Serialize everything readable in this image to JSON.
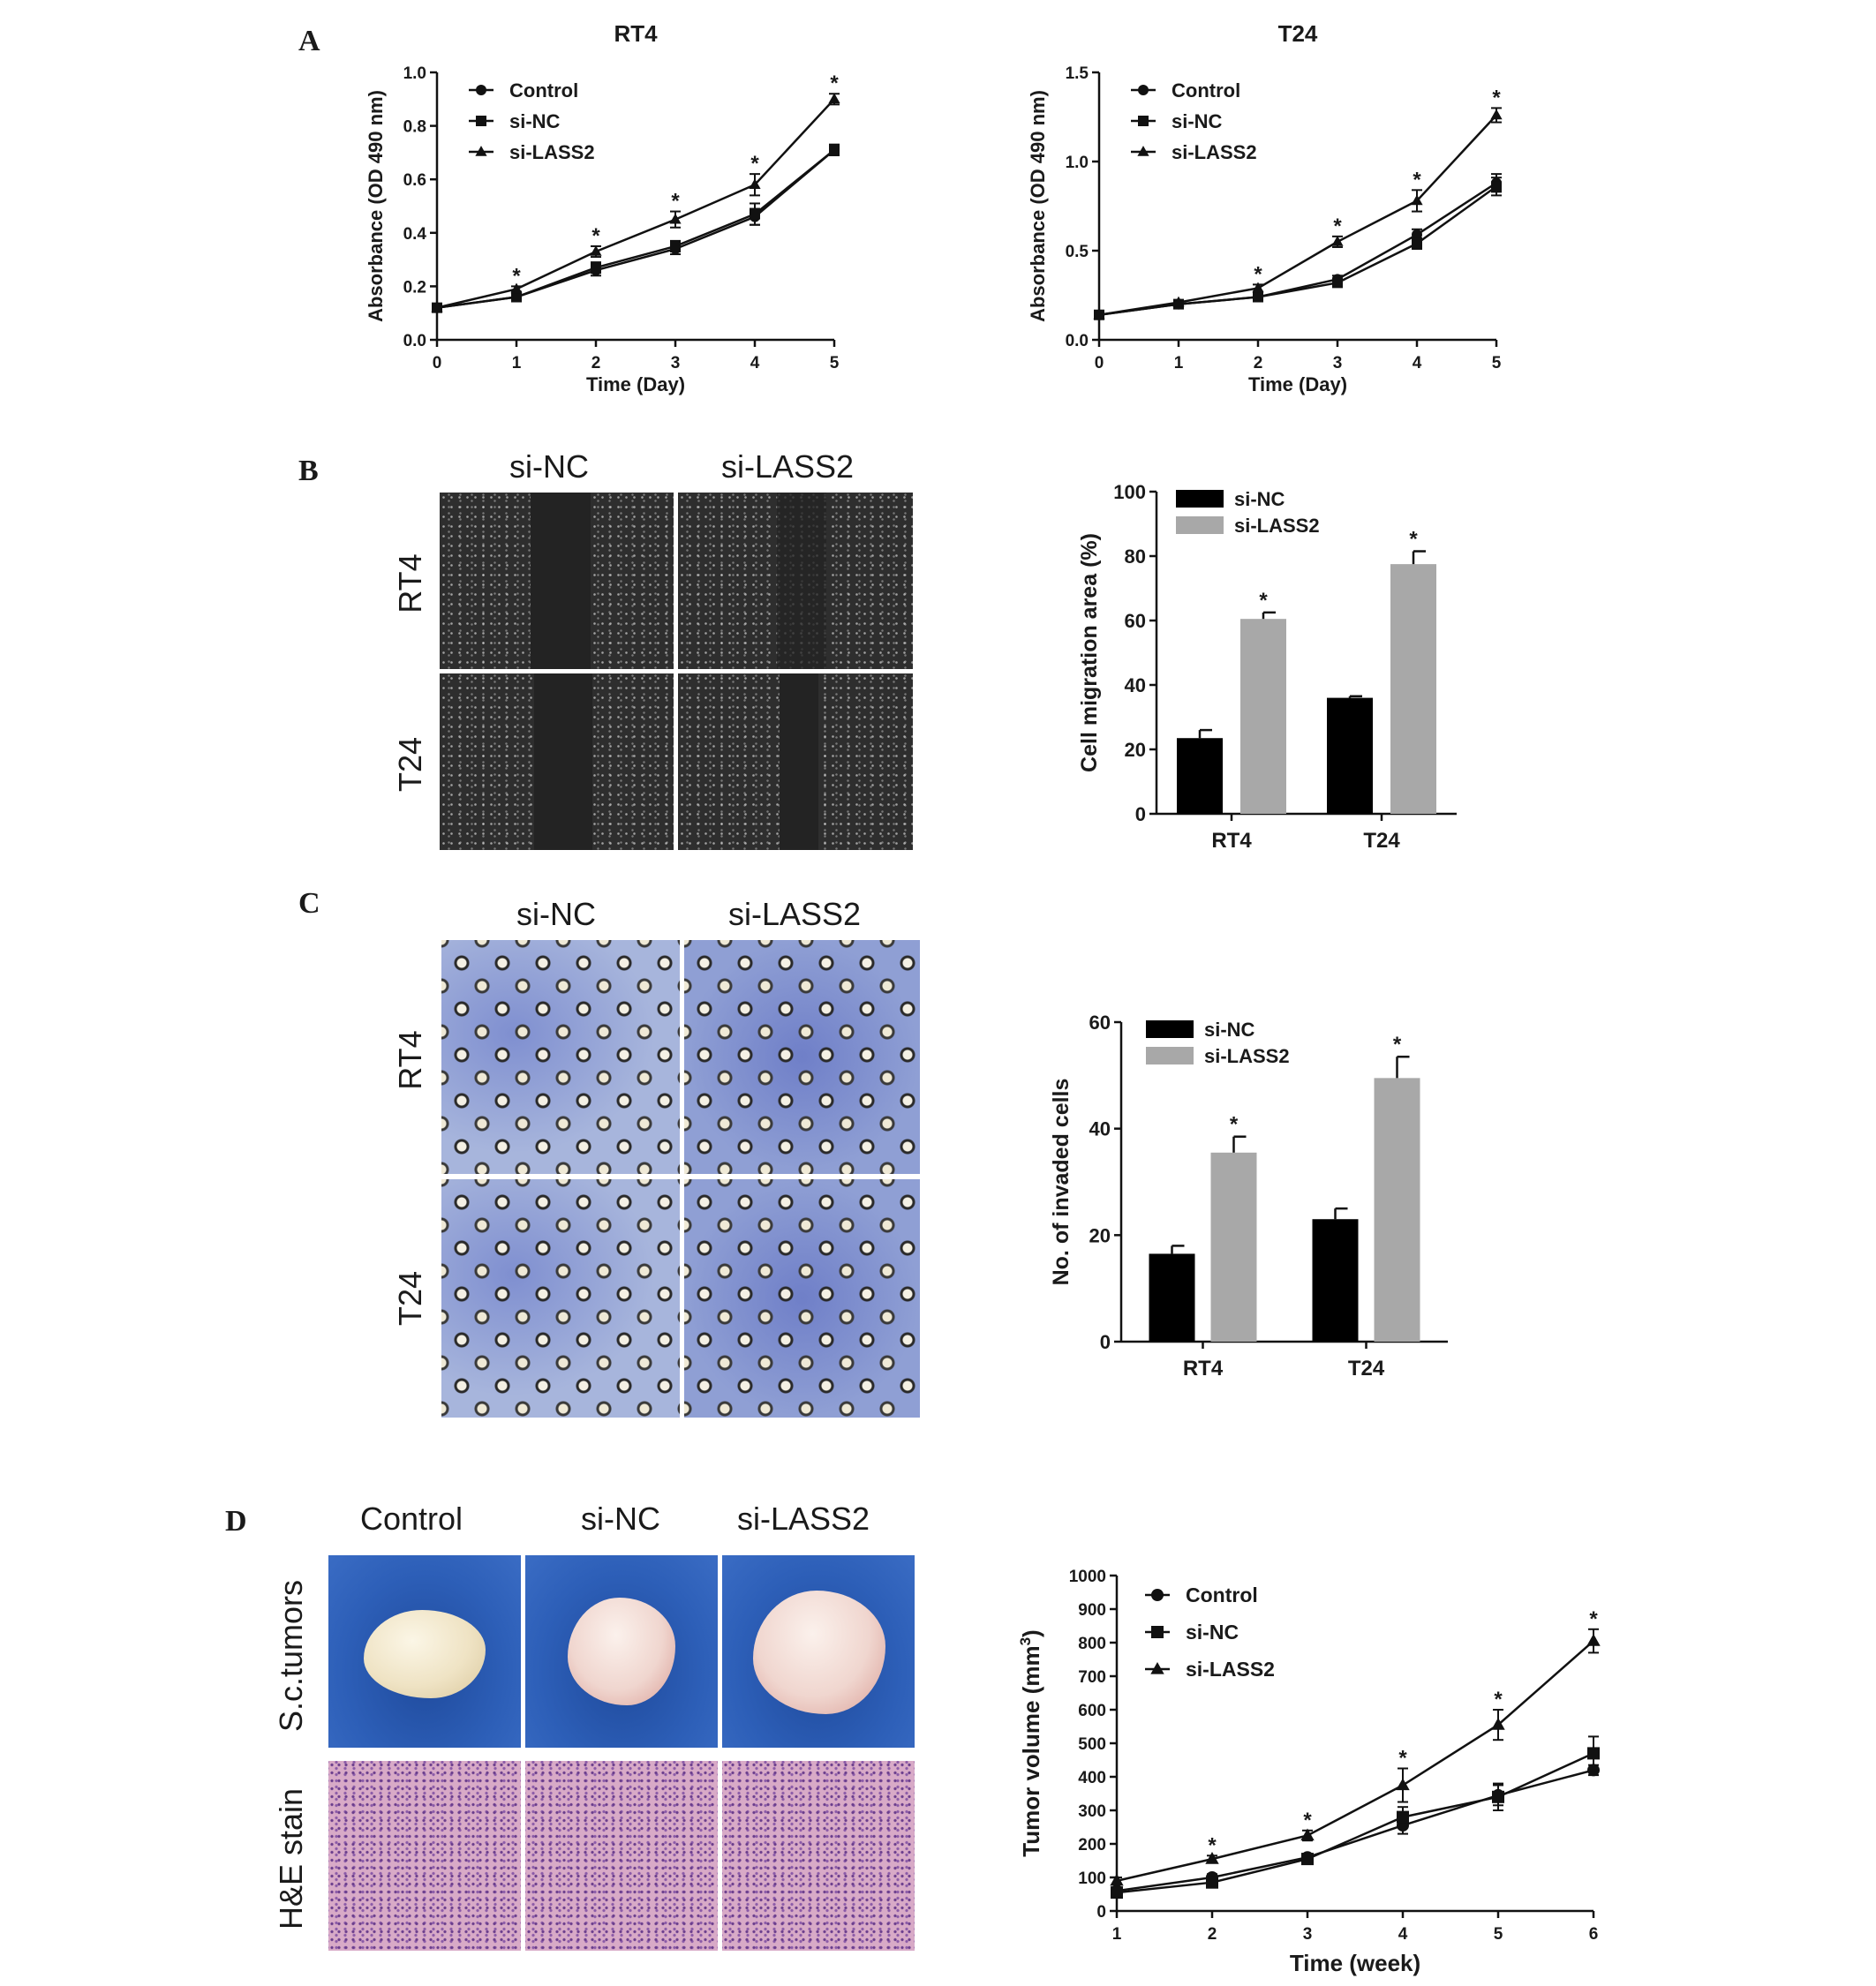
{
  "panels": {
    "a": "A",
    "b": "B",
    "c": "C",
    "d": "D"
  },
  "panel_b_images": {
    "col_labels": [
      "si-NC",
      "si-LASS2"
    ],
    "row_labels": [
      "RT4",
      "T24"
    ]
  },
  "panel_c_images": {
    "col_labels": [
      "si-NC",
      "si-LASS2"
    ],
    "row_labels": [
      "RT4",
      "T24"
    ]
  },
  "panel_d_images": {
    "col_labels": [
      "Control",
      "si-NC",
      "si-LASS2"
    ],
    "row_labels": [
      "S.c.tumors",
      "H&E stain"
    ]
  },
  "chart_data": [
    {
      "id": "rt4_growth",
      "type": "line",
      "title": "RT4",
      "xlabel": "Time (Day)",
      "ylabel": "Absorbance (OD 490 nm)",
      "x": [
        0,
        1,
        2,
        3,
        4,
        5
      ],
      "xticks": [
        "0",
        "1",
        "2",
        "3",
        "4",
        "5"
      ],
      "ylim": [
        0,
        1.0
      ],
      "yticks": [
        "0.0",
        "0.2",
        "0.4",
        "0.6",
        "0.8",
        "1.0"
      ],
      "series": [
        {
          "name": "Control",
          "marker": "circle",
          "values": [
            0.12,
            0.16,
            0.26,
            0.34,
            0.46,
            0.71
          ],
          "err": [
            0.01,
            0.01,
            0.02,
            0.02,
            0.03,
            0.02
          ]
        },
        {
          "name": "si-NC",
          "marker": "square",
          "values": [
            0.12,
            0.16,
            0.27,
            0.35,
            0.47,
            0.71
          ],
          "err": [
            0.01,
            0.01,
            0.02,
            0.02,
            0.04,
            0.02
          ]
        },
        {
          "name": "si-LASS2",
          "marker": "triangle",
          "values": [
            0.12,
            0.19,
            0.33,
            0.45,
            0.58,
            0.9
          ],
          "err": [
            0.01,
            0.01,
            0.02,
            0.03,
            0.04,
            0.02
          ]
        }
      ],
      "significance": [
        "",
        "*",
        "*",
        "*",
        "*",
        "*"
      ],
      "legend": "top-left"
    },
    {
      "id": "t24_growth",
      "type": "line",
      "title": "T24",
      "xlabel": "Time (Day)",
      "ylabel": "Absorbance (OD 490 nm)",
      "x": [
        0,
        1,
        2,
        3,
        4,
        5
      ],
      "xticks": [
        "0",
        "1",
        "2",
        "3",
        "4",
        "5"
      ],
      "ylim": [
        0,
        1.5
      ],
      "yticks": [
        "0.0",
        "0.5",
        "1.0",
        "1.5"
      ],
      "series": [
        {
          "name": "Control",
          "marker": "circle",
          "values": [
            0.14,
            0.2,
            0.24,
            0.34,
            0.59,
            0.88
          ],
          "err": [
            0.01,
            0.01,
            0.02,
            0.02,
            0.03,
            0.05
          ]
        },
        {
          "name": "si-NC",
          "marker": "square",
          "values": [
            0.14,
            0.2,
            0.24,
            0.32,
            0.54,
            0.86
          ],
          "err": [
            0.01,
            0.01,
            0.02,
            0.02,
            0.03,
            0.05
          ]
        },
        {
          "name": "si-LASS2",
          "marker": "triangle",
          "values": [
            0.14,
            0.21,
            0.29,
            0.55,
            0.78,
            1.26
          ],
          "err": [
            0.01,
            0.01,
            0.02,
            0.03,
            0.06,
            0.04
          ]
        }
      ],
      "significance": [
        "",
        "",
        "*",
        "*",
        "*",
        "*"
      ],
      "legend": "top-left"
    },
    {
      "id": "migration",
      "type": "bar",
      "xlabel": "",
      "ylabel": "Cell migration area (%)",
      "categories": [
        "RT4",
        "T24"
      ],
      "ylim": [
        0,
        100
      ],
      "yticks": [
        "0",
        "20",
        "40",
        "60",
        "80",
        "100"
      ],
      "series": [
        {
          "name": "si-NC",
          "color": "#000000",
          "values": [
            23.5,
            36
          ],
          "err": [
            2.5,
            0.5
          ]
        },
        {
          "name": "si-LASS2",
          "color": "#a8a8a8",
          "values": [
            60.5,
            77.5
          ],
          "err": [
            2,
            4
          ]
        }
      ],
      "significance": [
        "*",
        "*"
      ],
      "legend": "top-left"
    },
    {
      "id": "invasion",
      "type": "bar",
      "xlabel": "",
      "ylabel": "No. of invaded cells",
      "categories": [
        "RT4",
        "T24"
      ],
      "ylim": [
        0,
        60
      ],
      "yticks": [
        "0",
        "20",
        "40",
        "60"
      ],
      "series": [
        {
          "name": "si-NC",
          "color": "#000000",
          "values": [
            16.5,
            23
          ],
          "err": [
            1.5,
            2
          ]
        },
        {
          "name": "si-LASS2",
          "color": "#a8a8a8",
          "values": [
            35.5,
            49.5
          ],
          "err": [
            3,
            4
          ]
        }
      ],
      "significance": [
        "*",
        "*"
      ],
      "legend": "top-left"
    },
    {
      "id": "tumor_volume",
      "type": "line",
      "xlabel": "Time (week)",
      "ylabel_main": "Tumor volume (mm",
      "ylabel_sup": "3",
      "ylabel_end": ")",
      "x": [
        1,
        2,
        3,
        4,
        5,
        6
      ],
      "xticks": [
        "1",
        "2",
        "3",
        "4",
        "5",
        "6"
      ],
      "ylim": [
        0,
        1000
      ],
      "yticks": [
        "0",
        "100",
        "200",
        "300",
        "400",
        "500",
        "600",
        "700",
        "800",
        "900",
        "1000"
      ],
      "series": [
        {
          "name": "Control",
          "marker": "circle",
          "values": [
            60,
            100,
            160,
            255,
            345,
            420
          ],
          "err": [
            10,
            10,
            10,
            25,
            30,
            15
          ]
        },
        {
          "name": "si-NC",
          "marker": "square",
          "values": [
            55,
            85,
            155,
            280,
            340,
            470
          ],
          "err": [
            10,
            10,
            10,
            30,
            40,
            50
          ]
        },
        {
          "name": "si-LASS2",
          "marker": "triangle",
          "values": [
            90,
            155,
            225,
            375,
            555,
            805
          ],
          "err": [
            10,
            10,
            15,
            50,
            45,
            35
          ]
        }
      ],
      "significance": [
        "",
        "*",
        "*",
        "*",
        "*",
        "*"
      ],
      "legend": "top-left"
    }
  ]
}
